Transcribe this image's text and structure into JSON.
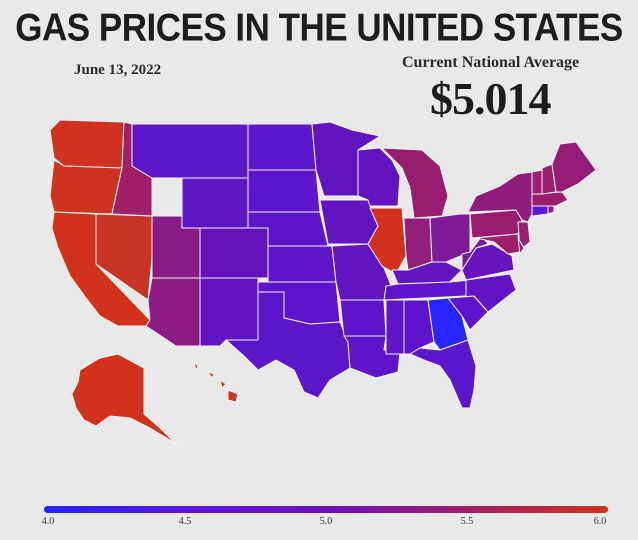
{
  "title": "GAS PRICES IN THE UNITED STATES",
  "date": "June 13, 2022",
  "national_average": {
    "label": "Current National Average",
    "value": "$5.014"
  },
  "colors": {
    "low": "#2323ff",
    "mid": "#6b10b8",
    "high": "#d2321c",
    "background": "#e9e9e9",
    "border": "#ffffff"
  },
  "legend": {
    "ticks": [
      "4.0",
      "4.5",
      "5.0",
      "5.5",
      "6.0"
    ],
    "min": 4.0,
    "max": 6.0
  }
}
